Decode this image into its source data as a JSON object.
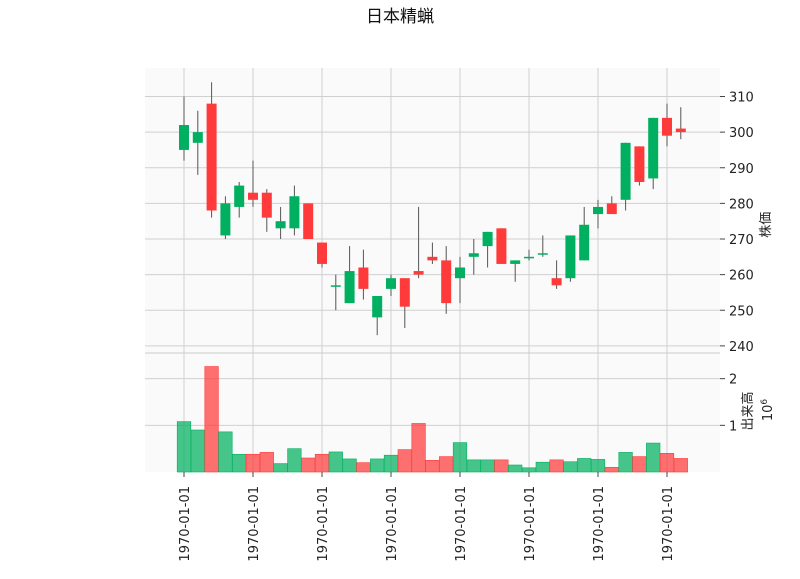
{
  "chart_data": {
    "type": "candlestick",
    "title": "日本精蝋",
    "price_panel": {
      "ylabel": "株価",
      "yticks": [
        240,
        250,
        260,
        270,
        280,
        290,
        300,
        310
      ],
      "ylim": [
        238,
        318
      ]
    },
    "volume_panel": {
      "ylabel": "出来高",
      "unit_label": "10^6",
      "unit_base": "10",
      "unit_exp": "6",
      "yticks": [
        1,
        2
      ],
      "ylim": [
        0,
        2.55
      ]
    },
    "x_tick_labels": [
      "1970-01-01",
      "1970-01-01",
      "1970-01-01",
      "1970-01-01",
      "1970-01-01",
      "1970-01-01",
      "1970-01-01",
      "1970-01-01"
    ],
    "x_tick_indices": [
      0,
      5,
      10,
      15,
      20,
      25,
      30,
      35
    ],
    "up_color": "#00b060",
    "down_color": "#ff3a3a",
    "candles": [
      {
        "open": 295,
        "high": 310,
        "low": 292,
        "close": 302,
        "volume": 1.08
      },
      {
        "open": 297,
        "high": 306,
        "low": 288,
        "close": 300,
        "volume": 0.9
      },
      {
        "open": 308,
        "high": 314,
        "low": 276,
        "close": 278,
        "volume": 2.26
      },
      {
        "open": 271,
        "high": 282,
        "low": 270,
        "close": 280,
        "volume": 0.86
      },
      {
        "open": 279,
        "high": 286,
        "low": 276,
        "close": 285,
        "volume": 0.38
      },
      {
        "open": 283,
        "high": 292,
        "low": 279,
        "close": 281,
        "volume": 0.38
      },
      {
        "open": 283,
        "high": 284,
        "low": 272,
        "close": 276,
        "volume": 0.42
      },
      {
        "open": 273,
        "high": 279,
        "low": 270,
        "close": 275,
        "volume": 0.18
      },
      {
        "open": 273,
        "high": 285,
        "low": 271,
        "close": 282,
        "volume": 0.5
      },
      {
        "open": 280,
        "high": 280,
        "low": 270,
        "close": 270,
        "volume": 0.3
      },
      {
        "open": 269,
        "high": 269,
        "low": 262,
        "close": 263,
        "volume": 0.38
      },
      {
        "open": 257,
        "high": 260,
        "low": 250,
        "close": 257,
        "volume": 0.43
      },
      {
        "open": 252,
        "high": 268,
        "low": 252,
        "close": 261,
        "volume": 0.28
      },
      {
        "open": 262,
        "high": 267,
        "low": 253,
        "close": 256,
        "volume": 0.2
      },
      {
        "open": 248,
        "high": 254,
        "low": 243,
        "close": 254,
        "volume": 0.28
      },
      {
        "open": 256,
        "high": 260,
        "low": 254,
        "close": 259,
        "volume": 0.36
      },
      {
        "open": 259,
        "high": 259,
        "low": 245,
        "close": 251,
        "volume": 0.48
      },
      {
        "open": 261,
        "high": 279,
        "low": 259,
        "close": 260,
        "volume": 1.04
      },
      {
        "open": 265,
        "high": 269,
        "low": 263,
        "close": 264,
        "volume": 0.25
      },
      {
        "open": 264,
        "high": 268,
        "low": 249,
        "close": 252,
        "volume": 0.33
      },
      {
        "open": 259,
        "high": 265,
        "low": 252,
        "close": 262,
        "volume": 0.63
      },
      {
        "open": 265,
        "high": 270,
        "low": 260,
        "close": 266,
        "volume": 0.26
      },
      {
        "open": 268,
        "high": 272,
        "low": 262,
        "close": 272,
        "volume": 0.26
      },
      {
        "open": 273,
        "high": 273,
        "low": 263,
        "close": 263,
        "volume": 0.26
      },
      {
        "open": 263,
        "high": 264,
        "low": 258,
        "close": 264,
        "volume": 0.15
      },
      {
        "open": 265,
        "high": 267,
        "low": 264,
        "close": 265,
        "volume": 0.09
      },
      {
        "open": 266,
        "high": 271,
        "low": 265,
        "close": 266,
        "volume": 0.21
      },
      {
        "open": 259,
        "high": 264,
        "low": 256,
        "close": 257,
        "volume": 0.26
      },
      {
        "open": 259,
        "high": 271,
        "low": 258,
        "close": 271,
        "volume": 0.22
      },
      {
        "open": 264,
        "high": 279,
        "low": 264,
        "close": 274,
        "volume": 0.29
      },
      {
        "open": 277,
        "high": 281,
        "low": 273,
        "close": 279,
        "volume": 0.27
      },
      {
        "open": 280,
        "high": 282,
        "low": 277,
        "close": 277,
        "volume": 0.1
      },
      {
        "open": 281,
        "high": 297,
        "low": 278,
        "close": 297,
        "volume": 0.42
      },
      {
        "open": 296,
        "high": 296,
        "low": 285,
        "close": 286,
        "volume": 0.33
      },
      {
        "open": 287,
        "high": 304,
        "low": 284,
        "close": 304,
        "volume": 0.62
      },
      {
        "open": 304,
        "high": 308,
        "low": 296,
        "close": 299,
        "volume": 0.4
      },
      {
        "open": 301,
        "high": 307,
        "low": 298,
        "close": 300,
        "volume": 0.29
      }
    ]
  }
}
